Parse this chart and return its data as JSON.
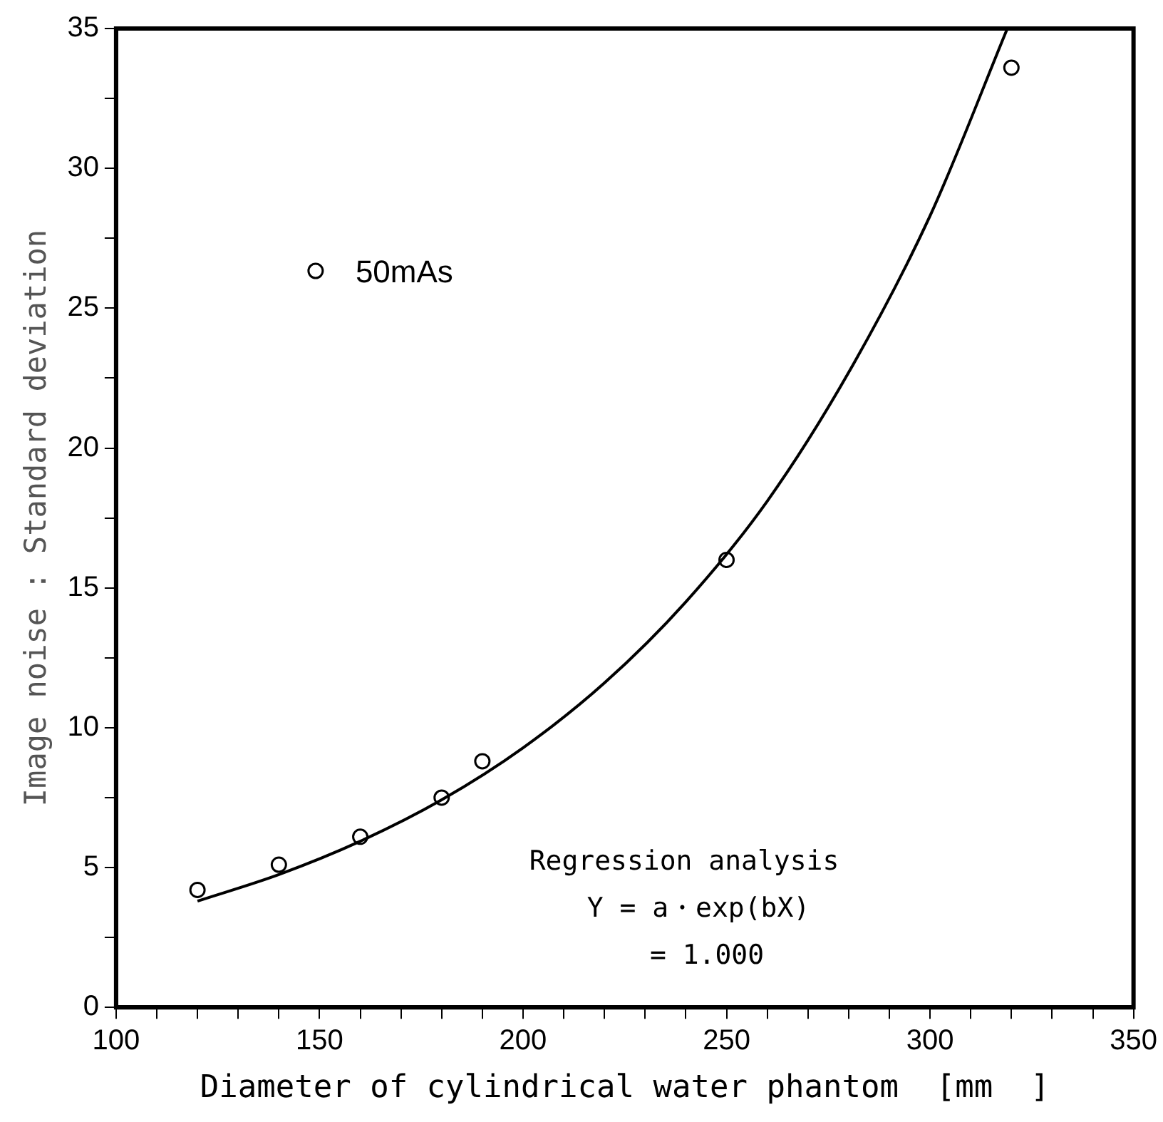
{
  "chart_data": {
    "type": "scatter",
    "xlabel": "Diameter of cylindrical water phantom  [mm  ]",
    "ylabel": "Image noise : Standard deviation",
    "xlim": [
      100,
      350
    ],
    "ylim": [
      0,
      35
    ],
    "xticks": [
      100,
      {
        "value": 110,
        "label": null
      },
      {
        "value": 120,
        "label": null
      },
      {
        "value": 130,
        "label": null
      },
      {
        "value": 140,
        "label": null
      },
      150,
      {
        "value": 160,
        "label": null
      },
      {
        "value": 170,
        "label": null
      },
      {
        "value": 180,
        "label": null
      },
      {
        "value": 190,
        "label": null
      },
      200,
      {
        "value": 210,
        "label": null
      },
      {
        "value": 220,
        "label": null
      },
      {
        "value": 230,
        "label": null
      },
      {
        "value": 240,
        "label": null
      },
      250,
      {
        "value": 260,
        "label": null
      },
      {
        "value": 270,
        "label": null
      },
      {
        "value": 280,
        "label": null
      },
      {
        "value": 290,
        "label": null
      },
      300,
      {
        "value": 310,
        "label": null
      },
      {
        "value": 320,
        "label": null
      },
      {
        "value": 330,
        "label": null
      },
      {
        "value": 340,
        "label": null
      },
      350
    ],
    "yticks": [
      0,
      {
        "value": 2.5,
        "label": null
      },
      5,
      {
        "value": 7.5,
        "label": null
      },
      10,
      {
        "value": 12.5,
        "label": null
      },
      15,
      {
        "value": 17.5,
        "label": null
      },
      20,
      {
        "value": 22.5,
        "label": null
      },
      25,
      {
        "value": 27.5,
        "label": null
      },
      30,
      {
        "value": 32.5,
        "label": null
      },
      35
    ],
    "series": [
      {
        "name": "50mAs",
        "marker": "circle",
        "color": "#000000",
        "x": [
          120,
          140,
          160,
          180,
          190,
          250,
          320
        ],
        "values": [
          4.2,
          5.1,
          6.1,
          7.5,
          8.8,
          16.0,
          33.6
        ]
      },
      {
        "type": "line",
        "marker": "none",
        "color": "#000000",
        "x": [
          120,
          140,
          160,
          180,
          200,
          220,
          240,
          260,
          280,
          300,
          319
        ],
        "values": [
          3.8,
          4.75,
          5.94,
          7.42,
          9.28,
          11.6,
          14.5,
          18.1,
          22.7,
          28.3,
          35.0
        ]
      }
    ],
    "legend": "top left",
    "grid": false,
    "annotations": [
      "Regression analysis",
      "Y = a・exp(bX)",
      "= 1.000"
    ]
  }
}
